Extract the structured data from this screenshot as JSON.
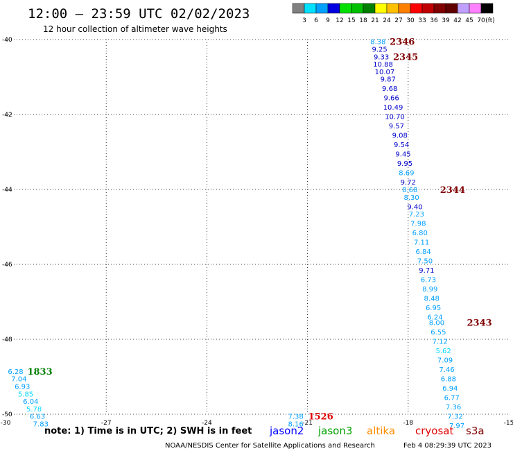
{
  "header": {
    "title": "12:00 – 23:59 UTC 02/02/2023",
    "subtitle": "12 hour collection of altimeter wave heights"
  },
  "colorbar": {
    "colors": [
      "#808080",
      "#00e0ff",
      "#00a0ff",
      "#0000e0",
      "#00e000",
      "#00c000",
      "#008000",
      "#ffff00",
      "#ffc000",
      "#ff8000",
      "#ff0000",
      "#c00000",
      "#800000",
      "#600000",
      "#c0a0ff",
      "#ff80ff",
      "#000000"
    ],
    "labels": [
      "3",
      "6",
      "9",
      "12",
      "15",
      "18",
      "21",
      "24",
      "27",
      "30",
      "33",
      "36",
      "39",
      "42",
      "45",
      "70"
    ],
    "unit": "(ft)"
  },
  "chart_data": {
    "type": "scatter",
    "xlim": [
      -30,
      -15
    ],
    "ylim": [
      -50,
      -40
    ],
    "xticks": [
      -30,
      -27,
      -24,
      -21,
      -18,
      -15
    ],
    "yticks": [
      -40,
      -42,
      -44,
      -46,
      -48,
      -50
    ],
    "grid": true,
    "series": [
      {
        "name": "jason2",
        "pass_label": "2346",
        "color": "#0000c8",
        "points": [
          {
            "x": -18.9,
            "y": -40.05,
            "v": "8.38",
            "c": "#00a0ff"
          },
          {
            "x": -18.85,
            "y": -40.25,
            "v": "9.25",
            "c": "#0000c8"
          },
          {
            "x": -18.8,
            "y": -40.45,
            "v": "9.33",
            "c": "#0000c8"
          },
          {
            "x": -18.75,
            "y": -40.65,
            "v": "10.88",
            "c": "#0000c8"
          },
          {
            "x": -18.7,
            "y": -40.85,
            "v": "10.07",
            "c": "#0000c8"
          },
          {
            "x": -18.6,
            "y": -41.05,
            "v": "9.87",
            "c": "#0000c8"
          },
          {
            "x": -18.55,
            "y": -41.3,
            "v": "9.68",
            "c": "#0000c8"
          },
          {
            "x": -18.5,
            "y": -41.55,
            "v": "9.66",
            "c": "#0000c8"
          },
          {
            "x": -18.45,
            "y": -41.8,
            "v": "10.49",
            "c": "#0000c8"
          },
          {
            "x": -18.4,
            "y": -42.05,
            "v": "10.70",
            "c": "#0000c8"
          },
          {
            "x": -18.35,
            "y": -42.3,
            "v": "9.57",
            "c": "#0000c8"
          },
          {
            "x": -18.25,
            "y": -42.55,
            "v": "9.08",
            "c": "#0000c8"
          },
          {
            "x": -18.2,
            "y": -42.8,
            "v": "9.54",
            "c": "#0000c8"
          },
          {
            "x": -18.15,
            "y": -43.05,
            "v": "9.45",
            "c": "#0000c8"
          },
          {
            "x": -18.1,
            "y": -43.3,
            "v": "9.95",
            "c": "#0000c8"
          },
          {
            "x": -18.05,
            "y": -43.55,
            "v": "8.69",
            "c": "#00a0ff"
          },
          {
            "x": -18.0,
            "y": -43.8,
            "v": "9.72",
            "c": "#0000c8"
          },
          {
            "x": -17.95,
            "y": -44.0,
            "v": "8.68",
            "c": "#00a0ff"
          },
          {
            "x": -17.9,
            "y": -44.2,
            "v": "8.30",
            "c": "#00a0ff"
          },
          {
            "x": -17.8,
            "y": -44.45,
            "v": "9.40",
            "c": "#0000c8"
          },
          {
            "x": -17.75,
            "y": -44.65,
            "v": "7.23",
            "c": "#00a0ff"
          },
          {
            "x": -17.7,
            "y": -44.9,
            "v": "7.98",
            "c": "#00a0ff"
          },
          {
            "x": -17.65,
            "y": -45.15,
            "v": "6.80",
            "c": "#00a0ff"
          },
          {
            "x": -17.6,
            "y": -45.4,
            "v": "7.11",
            "c": "#00a0ff"
          },
          {
            "x": -17.55,
            "y": -45.65,
            "v": "6.84",
            "c": "#00a0ff"
          },
          {
            "x": -17.5,
            "y": -45.9,
            "v": "7.50",
            "c": "#00a0ff"
          },
          {
            "x": -17.45,
            "y": -46.15,
            "v": "9.71",
            "c": "#0000c8"
          },
          {
            "x": -17.4,
            "y": -46.4,
            "v": "6.73",
            "c": "#00a0ff"
          },
          {
            "x": -17.35,
            "y": -46.65,
            "v": "8.99",
            "c": "#00a0ff"
          },
          {
            "x": -17.3,
            "y": -46.9,
            "v": "8.48",
            "c": "#00a0ff"
          },
          {
            "x": -17.25,
            "y": -47.15,
            "v": "6.95",
            "c": "#00a0ff"
          },
          {
            "x": -17.2,
            "y": -47.4,
            "v": "6.24",
            "c": "#00a0ff"
          },
          {
            "x": -17.15,
            "y": -47.55,
            "v": "8.00",
            "c": "#00a0ff"
          },
          {
            "x": -17.1,
            "y": -47.8,
            "v": "6.55",
            "c": "#00a0ff"
          },
          {
            "x": -17.05,
            "y": -48.05,
            "v": "7.12",
            "c": "#00a0ff"
          },
          {
            "x": -16.95,
            "y": -48.3,
            "v": "5.62",
            "c": "#00d8ff"
          },
          {
            "x": -16.9,
            "y": -48.55,
            "v": "7.09",
            "c": "#00a0ff"
          },
          {
            "x": -16.85,
            "y": -48.8,
            "v": "7.46",
            "c": "#00a0ff"
          },
          {
            "x": -16.8,
            "y": -49.05,
            "v": "6.88",
            "c": "#00a0ff"
          },
          {
            "x": -16.75,
            "y": -49.3,
            "v": "6.94",
            "c": "#00a0ff"
          },
          {
            "x": -16.7,
            "y": -49.55,
            "v": "6.77",
            "c": "#00a0ff"
          },
          {
            "x": -16.65,
            "y": -49.8,
            "v": "7.36",
            "c": "#00a0ff"
          },
          {
            "x": -16.6,
            "y": -50.05,
            "v": "7.32",
            "c": "#00a0ff"
          },
          {
            "x": -16.55,
            "y": -50.3,
            "v": "7.97",
            "c": "#00a0ff"
          }
        ]
      },
      {
        "name": "jason3",
        "pass_label": "1833",
        "color": "#00a0ff",
        "points": [
          {
            "x": -29.7,
            "y": -48.85,
            "v": "6.28",
            "c": "#00a0ff"
          },
          {
            "x": -29.6,
            "y": -49.05,
            "v": "7.04",
            "c": "#00a0ff"
          },
          {
            "x": -29.5,
            "y": -49.25,
            "v": "6.93",
            "c": "#00a0ff"
          },
          {
            "x": -29.4,
            "y": -49.45,
            "v": "5.85",
            "c": "#00d8ff"
          },
          {
            "x": -29.25,
            "y": -49.65,
            "v": "6.04",
            "c": "#00a0ff"
          },
          {
            "x": -29.15,
            "y": -49.85,
            "v": "5.78",
            "c": "#00d8ff"
          },
          {
            "x": -29.05,
            "y": -50.05,
            "v": "6.63",
            "c": "#00a0ff"
          },
          {
            "x": -28.95,
            "y": -50.25,
            "v": "7.83",
            "c": "#00a0ff"
          }
        ]
      },
      {
        "name": "cryosat",
        "pass_label": "1526",
        "color": "#00a0ff",
        "points": [
          {
            "x": -21.35,
            "y": -50.05,
            "v": "7.38",
            "c": "#00a0ff"
          },
          {
            "x": -21.35,
            "y": -50.25,
            "v": "8.16",
            "c": "#00a0ff"
          }
        ]
      }
    ],
    "pass_labels": [
      {
        "text": "2346",
        "x": -18.55,
        "y": -40.05,
        "c": "#800000"
      },
      {
        "text": "2345",
        "x": -18.45,
        "y": -40.45,
        "c": "#800000"
      },
      {
        "text": "2344",
        "x": -17.05,
        "y": -44.0,
        "c": "#800000"
      },
      {
        "text": "2343",
        "x": -16.25,
        "y": -47.55,
        "c": "#800000"
      },
      {
        "text": "1833",
        "x": -29.35,
        "y": -48.85,
        "c": "#008000"
      },
      {
        "text": "1526",
        "x": -20.98,
        "y": -50.05,
        "c": "#e00000"
      }
    ]
  },
  "footer": {
    "note": "note: 1) Time is in UTC; 2) SWH is in feet",
    "satellites": [
      {
        "name": "jason2",
        "color": "#0000ff"
      },
      {
        "name": "jason3",
        "color": "#00a000"
      },
      {
        "name": "altika",
        "color": "#ff8c00"
      },
      {
        "name": "cryosat",
        "color": "#e00000"
      },
      {
        "name": "s3a",
        "color": "#800000"
      }
    ],
    "credit": "NOAA/NESDIS Center for Satellite Applications and Research",
    "timestamp": "Feb  4 08:29:39 UTC 2023"
  }
}
